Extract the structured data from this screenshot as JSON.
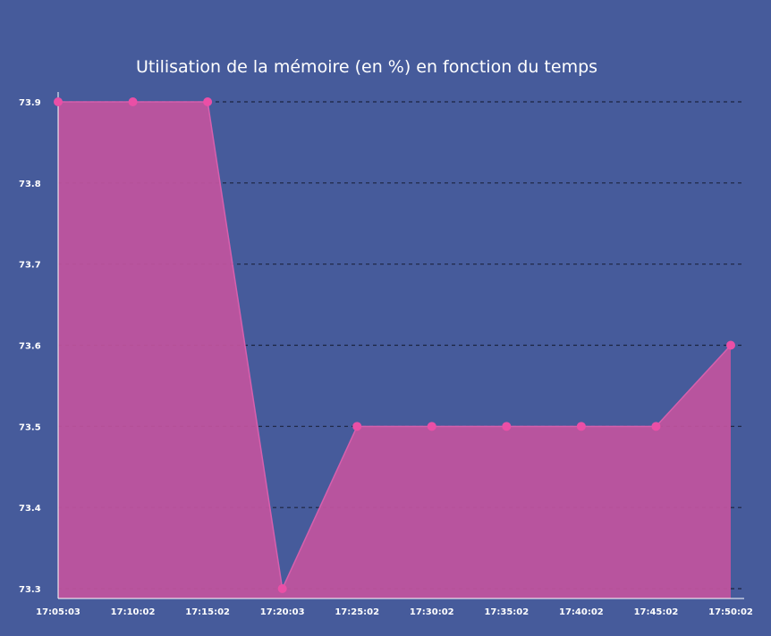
{
  "chart_data": {
    "type": "area",
    "title": "Utilisation de la mémoire (en %) en fonction du temps",
    "xlabel": "",
    "ylabel": "",
    "categories": [
      "17:05:03",
      "17:10:02",
      "17:15:02",
      "17:20:03",
      "17:25:02",
      "17:30:02",
      "17:35:02",
      "17:40:02",
      "17:45:02",
      "17:50:02"
    ],
    "series": [
      {
        "values": [
          73.9,
          73.9,
          73.9,
          73.3,
          73.5,
          73.5,
          73.5,
          73.5,
          73.5,
          73.6
        ]
      }
    ],
    "yticks": [
      "73.3",
      "73.4",
      "73.5",
      "73.6",
      "73.7",
      "73.8",
      "73.9"
    ],
    "ylim": [
      73.3,
      73.9
    ],
    "grid": "horizontal-dashed",
    "legend": "none",
    "colors": {
      "background": "#465b9b",
      "area_fill": "#c1549e",
      "area_line": "#d660ad",
      "marker": "#ea4fa6",
      "grid": "#1c2440",
      "axis": "#ffffff",
      "text": "#ffffff"
    }
  }
}
